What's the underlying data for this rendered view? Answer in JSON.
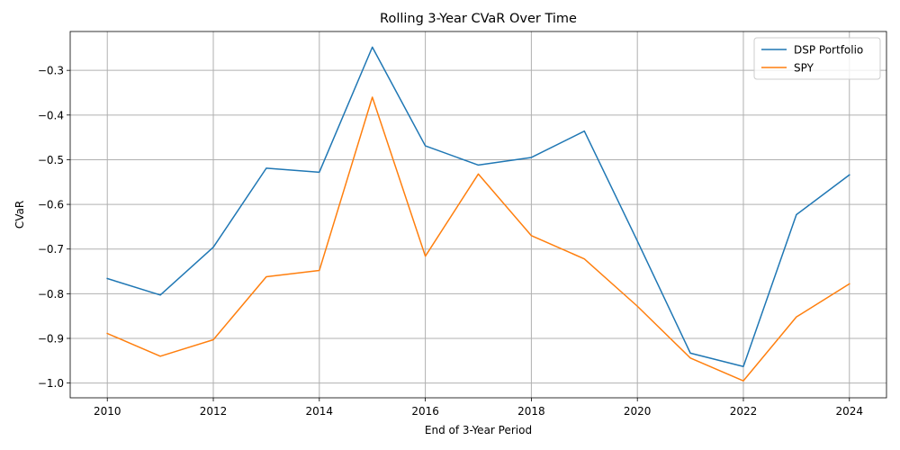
{
  "chart_data": {
    "type": "line",
    "title": "Rolling 3-Year CVaR Over Time",
    "xlabel": "End of 3-Year Period",
    "ylabel": "CVaR",
    "xlim": [
      2009.3,
      2024.7
    ],
    "ylim": [
      -1.033,
      -0.213
    ],
    "xticks": [
      2010,
      2012,
      2014,
      2016,
      2018,
      2020,
      2022,
      2024
    ],
    "yticks": [
      -1.0,
      -0.9,
      -0.8,
      -0.7,
      -0.6,
      -0.5,
      -0.4,
      -0.3
    ],
    "ytick_labels": [
      "−1.0",
      "−0.9",
      "−0.8",
      "−0.7",
      "−0.6",
      "−0.5",
      "−0.4",
      "−0.3"
    ],
    "grid": true,
    "legend_position": "top-right",
    "x": [
      2010,
      2011,
      2012,
      2013,
      2014,
      2015,
      2016,
      2017,
      2018,
      2019,
      2020,
      2021,
      2022,
      2023,
      2024
    ],
    "series": [
      {
        "name": "DSP Portfolio",
        "color": "#1f77b4",
        "values": [
          -0.766,
          -0.803,
          -0.696,
          -0.519,
          -0.528,
          -0.248,
          -0.469,
          -0.512,
          -0.495,
          -0.436,
          -0.682,
          -0.933,
          -0.963,
          -0.623,
          -0.534
        ]
      },
      {
        "name": "SPY",
        "color": "#ff7f0e",
        "values": [
          -0.889,
          -0.94,
          -0.903,
          -0.762,
          -0.748,
          -0.36,
          -0.716,
          -0.532,
          -0.67,
          -0.722,
          -0.828,
          -0.944,
          -0.995,
          -0.852,
          -0.778
        ]
      }
    ]
  }
}
